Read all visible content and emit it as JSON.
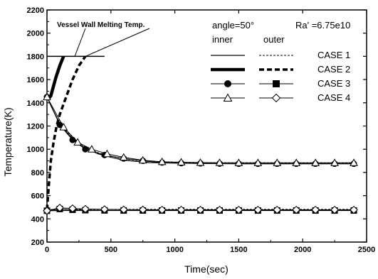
{
  "chart_data": {
    "type": "line",
    "title": "",
    "xlabel": "Time(sec)",
    "ylabel": "Temperature(K)",
    "xlim": [
      0,
      2500
    ],
    "ylim": [
      200,
      2200
    ],
    "xticks": [
      0,
      500,
      1000,
      1500,
      2000,
      2500
    ],
    "yticks": [
      200,
      400,
      600,
      800,
      1000,
      1200,
      1400,
      1600,
      1800,
      2000,
      2200
    ],
    "grid": false,
    "legend_position": "top-right",
    "legend": {
      "angle_text": "angle=50°",
      "ra_text": "Ra' =6.75e10",
      "inner_label": "inner",
      "outer_label": "outer",
      "cases": [
        "CASE 1",
        "CASE 2",
        "CASE 3",
        "CASE 4"
      ]
    },
    "annotation": {
      "text": "Vessel Wall Melting Temp.",
      "value": 1800,
      "x_range": [
        0,
        450
      ]
    },
    "series": [
      {
        "name": "CASE 1 inner",
        "style": "thin-solid",
        "x": [
          0,
          20,
          50,
          100,
          150,
          200,
          300,
          400,
          500,
          600,
          800,
          1000,
          1200,
          1500,
          2000,
          2400
        ],
        "y": [
          1460,
          1400,
          1330,
          1220,
          1150,
          1090,
          1010,
          960,
          930,
          905,
          885,
          880,
          877,
          875,
          875,
          875
        ]
      },
      {
        "name": "CASE 1 outer",
        "style": "thin-dash",
        "x": [
          0,
          20,
          50,
          100,
          150,
          200,
          300,
          400,
          500,
          600,
          800,
          1000,
          1200,
          1500,
          2000,
          2400
        ],
        "y": [
          1460,
          1400,
          1330,
          1225,
          1160,
          1100,
          1020,
          970,
          940,
          915,
          895,
          888,
          885,
          883,
          882,
          882
        ]
      },
      {
        "name": "CASE 1 inner (low)",
        "style": "thin-solid",
        "x": [
          0,
          100,
          300,
          600,
          1000,
          1500,
          2000,
          2400
        ],
        "y": [
          470,
          472,
          472,
          472,
          472,
          472,
          472,
          472
        ]
      },
      {
        "name": "CASE 1 outer (low)",
        "style": "thin-dash",
        "x": [
          0,
          100,
          300,
          600,
          1000,
          1500,
          2000,
          2400
        ],
        "y": [
          480,
          482,
          482,
          482,
          482,
          482,
          482,
          482
        ]
      },
      {
        "name": "CASE 2 inner",
        "style": "thick-solid",
        "x": [
          0,
          5,
          15,
          30,
          50,
          70,
          100,
          130
        ],
        "y": [
          1460,
          1445,
          1440,
          1460,
          1540,
          1620,
          1720,
          1800
        ]
      },
      {
        "name": "CASE 2 outer",
        "style": "thick-dash",
        "x": [
          0,
          15,
          30,
          50,
          75,
          100,
          150,
          200,
          250,
          300
        ],
        "y": [
          480,
          700,
          900,
          1050,
          1200,
          1300,
          1450,
          1600,
          1720,
          1800
        ]
      },
      {
        "name": "CASE 3 inner",
        "style": "filled-circle",
        "x": [
          0,
          100,
          200,
          300,
          450,
          600,
          750,
          900,
          1050,
          1200,
          1350,
          1500,
          1650,
          1800,
          1950,
          2100,
          2250,
          2400
        ],
        "y": [
          1450,
          1210,
          1080,
          1000,
          950,
          920,
          900,
          885,
          880,
          878,
          876,
          875,
          875,
          875,
          875,
          875,
          875,
          875
        ]
      },
      {
        "name": "CASE 3 outer",
        "style": "filled-square",
        "x": [
          0,
          100,
          200,
          300,
          450,
          600,
          750,
          900,
          1050,
          1200,
          1350,
          1500,
          1650,
          1800,
          1950,
          2100,
          2250,
          2400
        ],
        "y": [
          470,
          485,
          478,
          475,
          473,
          472,
          472,
          472,
          472,
          472,
          472,
          472,
          472,
          472,
          472,
          472,
          472,
          472
        ]
      },
      {
        "name": "CASE 4 inner",
        "style": "open-triangle",
        "x": [
          0,
          130,
          240,
          350,
          470,
          600,
          750,
          900,
          1050,
          1200,
          1350,
          1500,
          1650,
          1800,
          1950,
          2100,
          2250,
          2400
        ],
        "y": [
          1450,
          1190,
          1060,
          1000,
          960,
          930,
          905,
          892,
          888,
          885,
          884,
          883,
          883,
          883,
          883,
          883,
          883,
          883
        ]
      },
      {
        "name": "CASE 4 outer",
        "style": "open-diamond",
        "x": [
          0,
          100,
          200,
          300,
          450,
          600,
          750,
          900,
          1050,
          1200,
          1350,
          1500,
          1650,
          1800,
          1950,
          2100,
          2250,
          2400
        ],
        "y": [
          470,
          495,
          490,
          485,
          482,
          480,
          479,
          478,
          478,
          478,
          478,
          478,
          478,
          478,
          478,
          478,
          478,
          478
        ]
      }
    ]
  }
}
